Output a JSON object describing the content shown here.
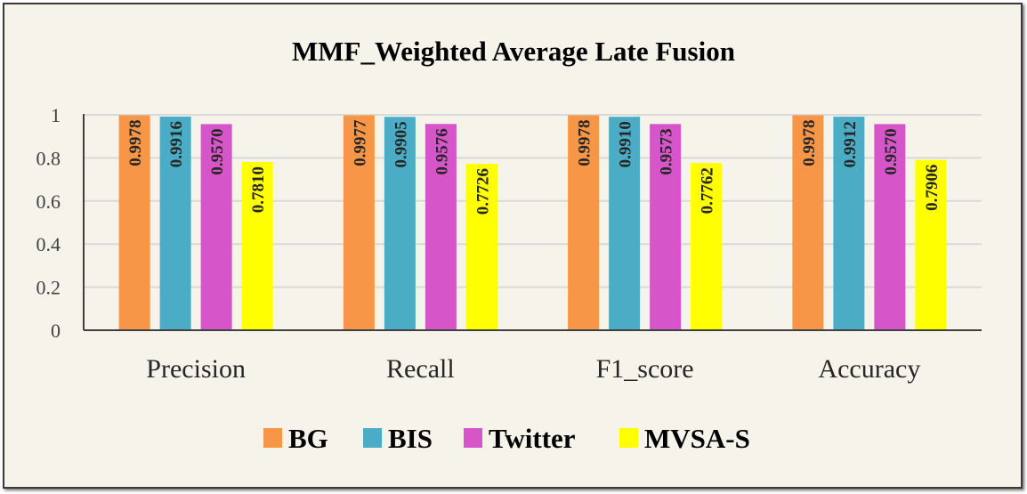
{
  "chart_data": {
    "type": "bar",
    "title": "MMF_Weighted Average Late Fusion",
    "xlabel": "",
    "ylabel": "",
    "categories": [
      "Precision",
      "Recall",
      "F1_score",
      "Accuracy"
    ],
    "ylim": [
      0,
      1
    ],
    "yticks": [
      0,
      0.2,
      0.4,
      0.6,
      0.8,
      1
    ],
    "ytick_labels": [
      "0",
      "0.2",
      "0.4",
      "0.6",
      "0.8",
      "1"
    ],
    "grid": true,
    "legend_position": "bottom",
    "series": [
      {
        "name": "BG",
        "color": "#f79646",
        "values": [
          0.9978,
          0.9977,
          0.9978,
          0.9978
        ],
        "labels": [
          "0.9978",
          "0.9977",
          "0.9978",
          "0.9978"
        ]
      },
      {
        "name": "BIS",
        "color": "#4bacc6",
        "values": [
          0.9916,
          0.9905,
          0.991,
          0.9912
        ],
        "labels": [
          "0.9916",
          "0.9905",
          "0.9910",
          "0.9912"
        ]
      },
      {
        "name": "Twitter",
        "color": "#d655c8",
        "values": [
          0.957,
          0.9576,
          0.9573,
          0.957
        ],
        "labels": [
          "0.9570",
          "0.9576",
          "0.9573",
          "0.9570"
        ]
      },
      {
        "name": "MVSA-S",
        "color": "#ffff00",
        "values": [
          0.781,
          0.7726,
          0.7762,
          0.7906
        ],
        "labels": [
          "0.7810",
          "0.7726",
          "0.7762",
          "0.7906"
        ]
      }
    ]
  }
}
